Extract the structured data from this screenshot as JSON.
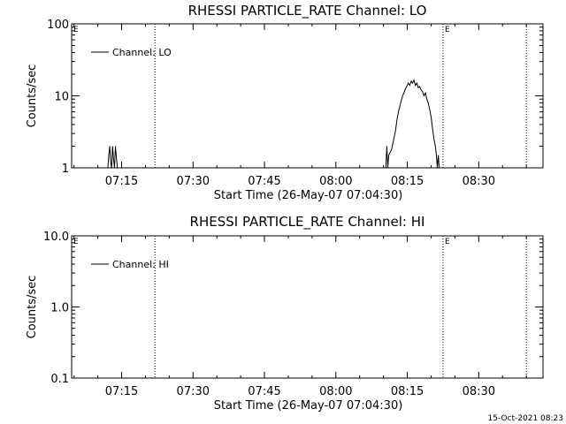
{
  "footer": {
    "timestamp": "15-Oct-2021 08:23"
  },
  "chart_data": [
    {
      "type": "line",
      "title": "RHESSI PARTICLE_RATE Channel: LO",
      "xlabel": "Start Time (26-May-07 07:04:30)",
      "ylabel": "Counts/sec",
      "x_unit": "minutes after 07:04:30",
      "xlim": [
        0,
        99
      ],
      "ylim": [
        1,
        100
      ],
      "yscale": "log",
      "x_ticks": [
        {
          "label": "07:15",
          "value": 10.5
        },
        {
          "label": "07:30",
          "value": 25.5
        },
        {
          "label": "07:45",
          "value": 40.5
        },
        {
          "label": "08:00",
          "value": 55.5
        },
        {
          "label": "08:15",
          "value": 70.5
        },
        {
          "label": "08:30",
          "value": 85.5
        }
      ],
      "y_ticks": [
        {
          "label": "1",
          "value": 1
        },
        {
          "label": "10",
          "value": 10
        },
        {
          "label": "100",
          "value": 100
        }
      ],
      "vlines": [
        17.5,
        78.0,
        95.5
      ],
      "markers": [
        {
          "label": "E",
          "x": 0
        },
        {
          "label": "E",
          "x": 78.0
        }
      ],
      "legend": {
        "position": "top-left",
        "entries": [
          "Channel: LO"
        ]
      },
      "series": [
        {
          "name": "Channel: LO",
          "segments": [
            [
              [
                7.6,
                1
              ],
              [
                7.8,
                1.5
              ],
              [
                8.0,
                2
              ],
              [
                8.2,
                1.2
              ],
              [
                8.4,
                1
              ],
              [
                8.6,
                2
              ],
              [
                8.8,
                1.3
              ],
              [
                9.0,
                1
              ],
              [
                9.2,
                2
              ],
              [
                9.4,
                1.4
              ],
              [
                9.6,
                1
              ]
            ],
            [
              [
                66.0,
                1
              ],
              [
                66.2,
                2
              ],
              [
                66.4,
                1
              ],
              [
                66.6,
                1.5
              ],
              [
                67.2,
                1.8
              ],
              [
                67.6,
                2.4
              ],
              [
                68.0,
                3.2
              ],
              [
                68.3,
                4.5
              ],
              [
                68.6,
                5.8
              ],
              [
                68.9,
                7
              ],
              [
                69.2,
                8.5
              ],
              [
                69.5,
                10
              ],
              [
                69.8,
                11
              ],
              [
                70.1,
                12.5
              ],
              [
                70.4,
                13.5
              ],
              [
                70.7,
                15
              ],
              [
                71.0,
                14
              ],
              [
                71.3,
                16
              ],
              [
                71.6,
                15
              ],
              [
                71.9,
                16.5
              ],
              [
                72.2,
                14
              ],
              [
                72.5,
                15
              ],
              [
                72.8,
                13
              ],
              [
                73.1,
                13.5
              ],
              [
                73.4,
                12
              ],
              [
                73.7,
                11.5
              ],
              [
                74.0,
                10
              ],
              [
                74.3,
                11
              ],
              [
                74.6,
                9
              ],
              [
                74.9,
                8
              ],
              [
                75.2,
                6.5
              ],
              [
                75.5,
                5
              ],
              [
                75.8,
                3.5
              ],
              [
                76.1,
                2.5
              ],
              [
                76.4,
                2
              ],
              [
                76.6,
                1.5
              ],
              [
                76.8,
                1
              ],
              [
                77.0,
                1.5
              ],
              [
                77.2,
                1
              ]
            ]
          ]
        }
      ]
    },
    {
      "type": "line",
      "title": "RHESSI PARTICLE_RATE Channel: HI",
      "xlabel": "Start Time (26-May-07 07:04:30)",
      "ylabel": "Counts/sec",
      "x_unit": "minutes after 07:04:30",
      "xlim": [
        0,
        99
      ],
      "ylim": [
        0.1,
        10
      ],
      "yscale": "log",
      "x_ticks": [
        {
          "label": "07:15",
          "value": 10.5
        },
        {
          "label": "07:30",
          "value": 25.5
        },
        {
          "label": "07:45",
          "value": 40.5
        },
        {
          "label": "08:00",
          "value": 55.5
        },
        {
          "label": "08:15",
          "value": 70.5
        },
        {
          "label": "08:30",
          "value": 85.5
        }
      ],
      "y_ticks": [
        {
          "label": "0.1",
          "value": 0.1
        },
        {
          "label": "1.0",
          "value": 1
        },
        {
          "label": "10.0",
          "value": 10
        }
      ],
      "vlines": [
        17.5,
        78.0,
        95.5
      ],
      "markers": [
        {
          "label": "E",
          "x": 0
        },
        {
          "label": "E",
          "x": 78.0
        }
      ],
      "legend": {
        "position": "top-left",
        "entries": [
          "Channel: HI"
        ]
      },
      "series": [
        {
          "name": "Channel: HI",
          "segments": []
        }
      ]
    }
  ]
}
